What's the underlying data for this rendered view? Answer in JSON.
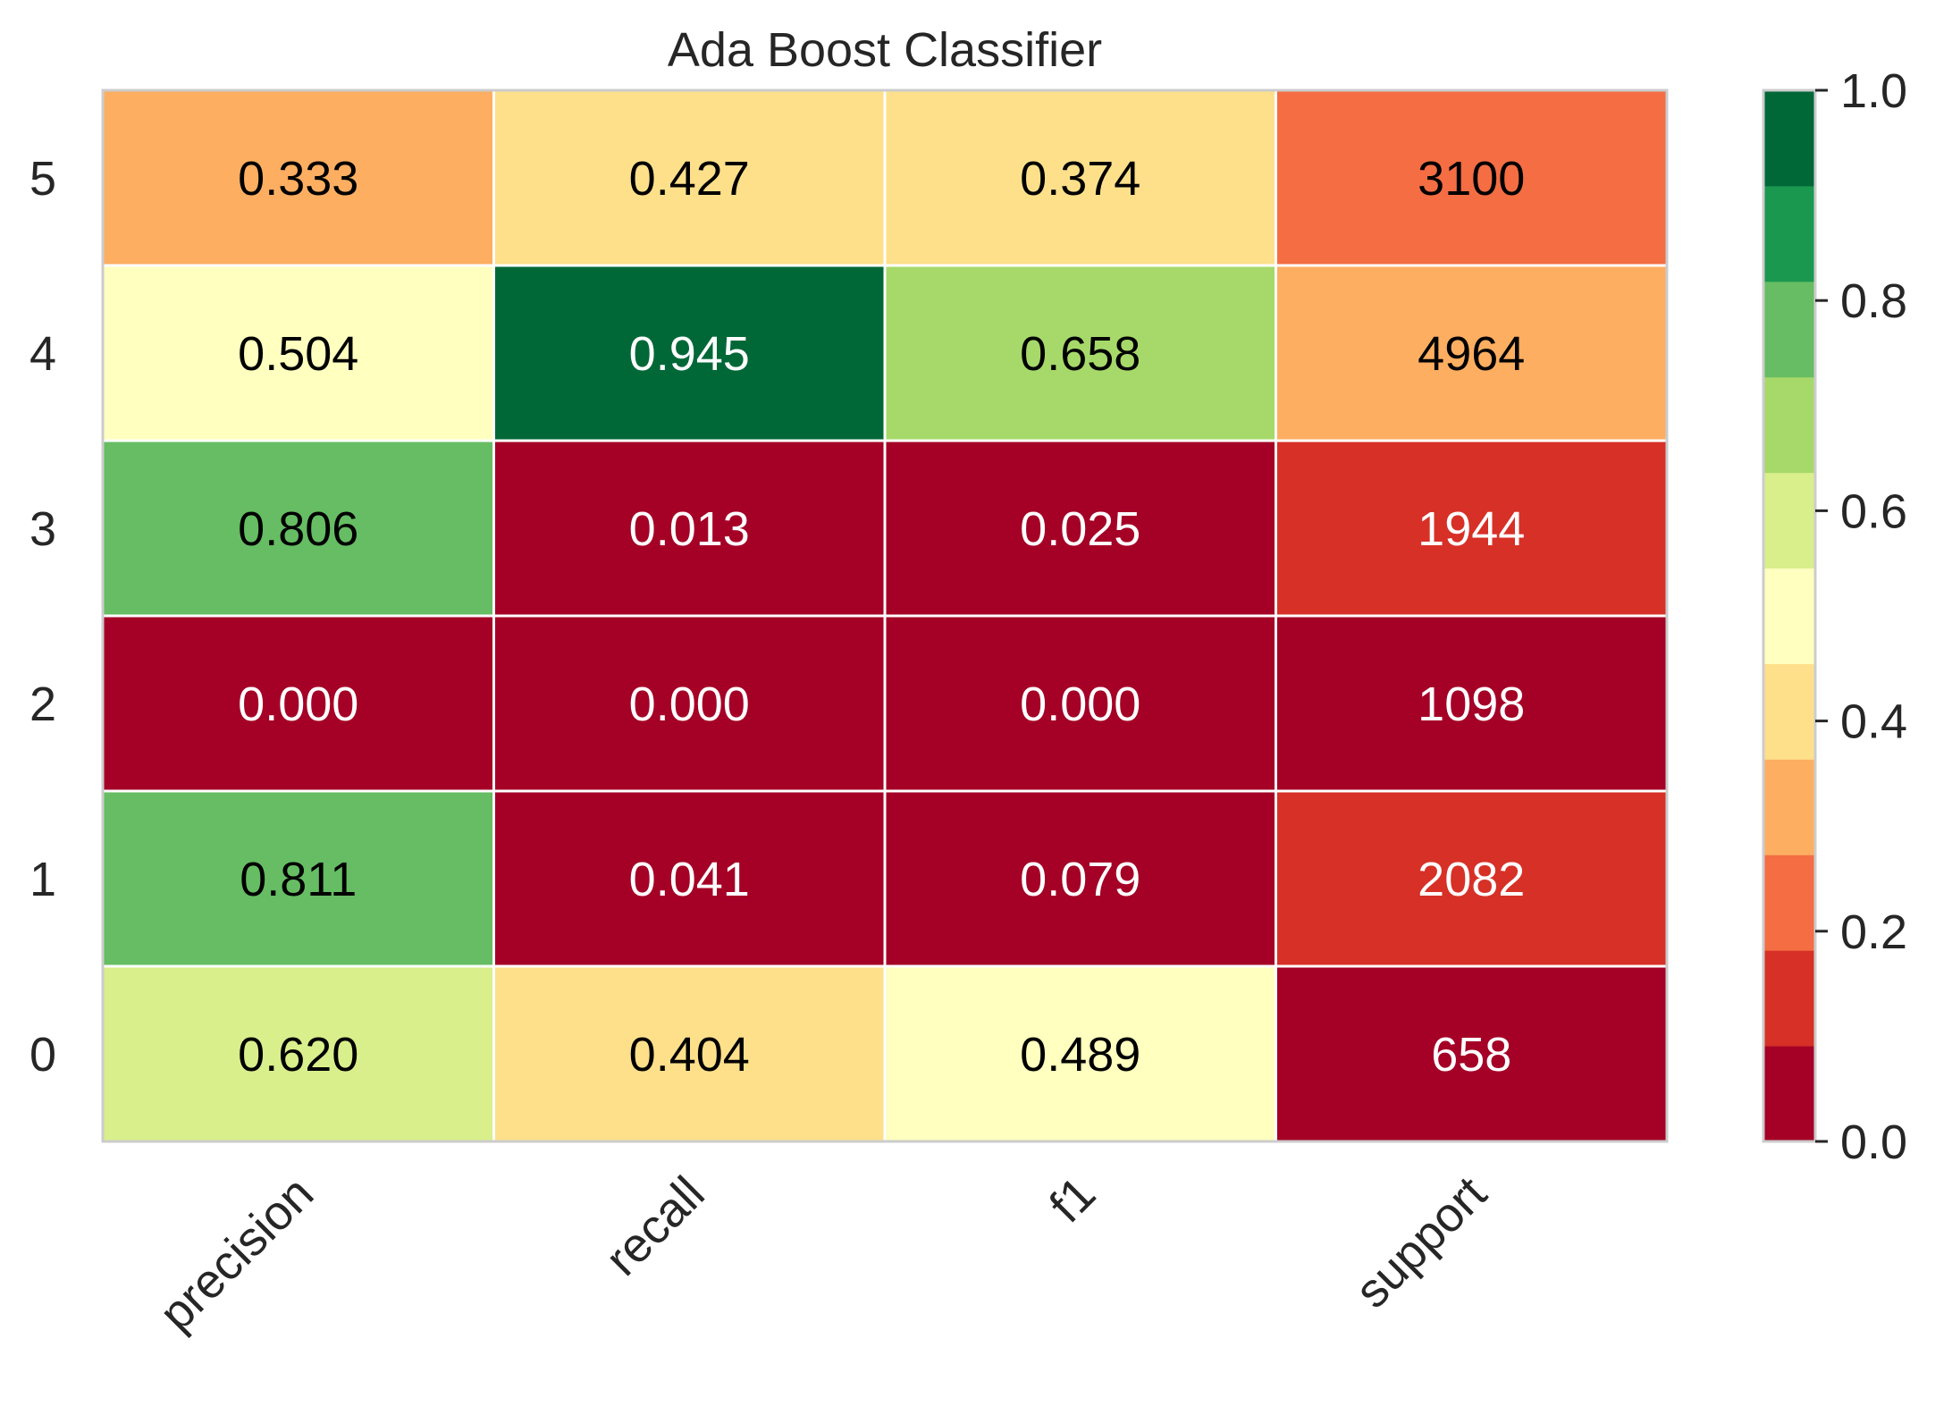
{
  "chart_data": {
    "type": "heatmap",
    "title": "Ada Boost Classifier",
    "xlabel": "",
    "ylabel": "",
    "columns": [
      "precision",
      "recall",
      "f1",
      "support"
    ],
    "rows": [
      "5",
      "4",
      "3",
      "2",
      "1",
      "0"
    ],
    "cells": [
      [
        {
          "text": "0.333",
          "level": 0.333
        },
        {
          "text": "0.427",
          "level": 0.427
        },
        {
          "text": "0.374",
          "level": 0.374
        },
        {
          "text": "3100",
          "level": 0.2
        }
      ],
      [
        {
          "text": "0.504",
          "level": 0.504
        },
        {
          "text": "0.945",
          "level": 0.945
        },
        {
          "text": "0.658",
          "level": 0.658
        },
        {
          "text": "4964",
          "level": 0.32
        }
      ],
      [
        {
          "text": "0.806",
          "level": 0.806
        },
        {
          "text": "0.013",
          "level": 0.013
        },
        {
          "text": "0.025",
          "level": 0.025
        },
        {
          "text": "1944",
          "level": 0.13
        }
      ],
      [
        {
          "text": "0.000",
          "level": 0.0
        },
        {
          "text": "0.000",
          "level": 0.0
        },
        {
          "text": "0.000",
          "level": 0.0
        },
        {
          "text": "1098",
          "level": 0.0
        }
      ],
      [
        {
          "text": "0.811",
          "level": 0.811
        },
        {
          "text": "0.041",
          "level": 0.041
        },
        {
          "text": "0.079",
          "level": 0.079
        },
        {
          "text": "2082",
          "level": 0.13
        }
      ],
      [
        {
          "text": "0.620",
          "level": 0.62
        },
        {
          "text": "0.404",
          "level": 0.404
        },
        {
          "text": "0.489",
          "level": 0.489
        },
        {
          "text": "658",
          "level": 0.0
        }
      ]
    ],
    "colorbar": {
      "range": [
        0.0,
        1.0
      ],
      "ticks": [
        "0.0",
        "0.2",
        "0.4",
        "0.6",
        "0.8",
        "1.0"
      ],
      "colors": [
        "#a50026",
        "#d73027",
        "#f46d43",
        "#fdae61",
        "#fee08b",
        "#ffffbf",
        "#d9ef8b",
        "#a6d96a",
        "#66bd63",
        "#1a9850",
        "#006837"
      ]
    },
    "grid": false
  }
}
